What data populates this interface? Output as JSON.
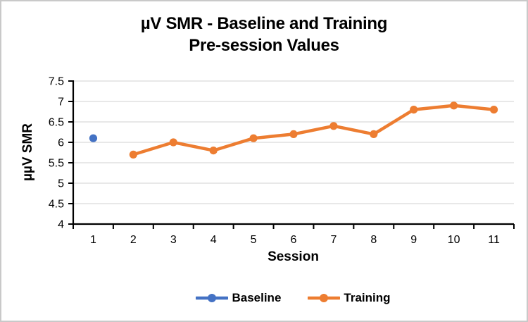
{
  "chart_data": {
    "type": "line",
    "title_lines": [
      "µV SMR - Baseline and Training",
      "Pre-session Values"
    ],
    "xlabel": "Session",
    "ylabel": "µµV SMR",
    "x_categories": [
      1,
      2,
      3,
      4,
      5,
      6,
      7,
      8,
      9,
      10,
      11
    ],
    "ylim": [
      4,
      7.5
    ],
    "ytick_step": 0.5,
    "yticks": [
      "4",
      "4.5",
      "5",
      "5.5",
      "6",
      "6.5",
      "7",
      "7.5"
    ],
    "grid": "horizontal-major",
    "legend_position": "bottom",
    "series": [
      {
        "name": "Baseline",
        "color": "#4472C4",
        "x": [
          1
        ],
        "values": [
          6.1
        ]
      },
      {
        "name": "Training",
        "color": "#ED7D31",
        "x": [
          2,
          3,
          4,
          5,
          6,
          7,
          8,
          9,
          10,
          11
        ],
        "values": [
          5.7,
          6.0,
          5.8,
          6.1,
          6.2,
          6.4,
          6.2,
          6.8,
          6.9,
          6.8
        ]
      }
    ],
    "colors": {
      "background": "#FFFFFF",
      "border": "#C9C9C9",
      "gridline": "#D9D9D9",
      "axis": "#000000",
      "text": "#000000"
    }
  }
}
